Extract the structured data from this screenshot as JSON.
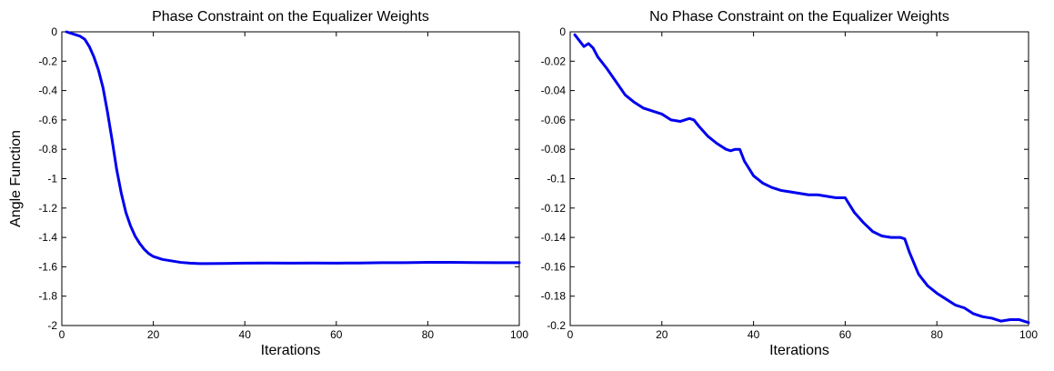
{
  "chart_data": [
    {
      "type": "line",
      "title": "Phase Constraint on the Equalizer Weights",
      "xlabel": "Iterations",
      "ylabel": "Angle Function",
      "xlim": [
        0,
        100
      ],
      "ylim": [
        -2,
        0
      ],
      "xticks": [
        0,
        20,
        40,
        60,
        80,
        100
      ],
      "xtick_labels": [
        "0",
        "20",
        "40",
        "60",
        "80",
        "100"
      ],
      "yticks": [
        0,
        -0.2,
        -0.4,
        -0.6,
        -0.8,
        -1,
        -1.2,
        -1.4,
        -1.6,
        -1.8,
        -2
      ],
      "ytick_labels": [
        "0",
        "-0.2",
        "-0.4",
        "-0.6",
        "-0.8",
        "-1",
        "-1.2",
        "-1.4",
        "-1.6",
        "-1.8",
        "-2"
      ],
      "grid": false,
      "line_color": "#0000ee",
      "series": [
        {
          "x": [
            1,
            2,
            3,
            4,
            5,
            6,
            7,
            8,
            9,
            10,
            11,
            12,
            13,
            14,
            15,
            16,
            17,
            18,
            19,
            20,
            22,
            24,
            26,
            28,
            30,
            32,
            35,
            38,
            40,
            45,
            50,
            55,
            60,
            65,
            70,
            75,
            80,
            85,
            90,
            95,
            100
          ],
          "values": [
            0,
            -0.01,
            -0.02,
            -0.03,
            -0.05,
            -0.1,
            -0.17,
            -0.26,
            -0.38,
            -0.55,
            -0.74,
            -0.94,
            -1.1,
            -1.23,
            -1.32,
            -1.39,
            -1.44,
            -1.48,
            -1.51,
            -1.53,
            -1.55,
            -1.56,
            -1.57,
            -1.575,
            -1.578,
            -1.578,
            -1.577,
            -1.576,
            -1.575,
            -1.574,
            -1.575,
            -1.574,
            -1.575,
            -1.574,
            -1.572,
            -1.572,
            -1.57,
            -1.57,
            -1.571,
            -1.572,
            -1.572
          ]
        }
      ]
    },
    {
      "type": "line",
      "title": "No Phase Constraint on the Equalizer  Weights",
      "xlabel": "Iterations",
      "ylabel": "",
      "xlim": [
        0,
        100
      ],
      "ylim": [
        -0.2,
        0
      ],
      "xticks": [
        0,
        20,
        40,
        60,
        80,
        100
      ],
      "xtick_labels": [
        "0",
        "20",
        "40",
        "60",
        "80",
        "100"
      ],
      "yticks": [
        0,
        -0.02,
        -0.04,
        -0.06,
        -0.08,
        -0.1,
        -0.12,
        -0.14,
        -0.16,
        -0.18,
        -0.2
      ],
      "ytick_labels": [
        "0",
        "-0.02",
        "-0.04",
        "-0.06",
        "-0.08",
        "-0.1",
        "-0.12",
        "-0.14",
        "-0.16",
        "-0.18",
        "-0.2"
      ],
      "grid": false,
      "line_color": "#0000ee",
      "series": [
        {
          "x": [
            1,
            2,
            3,
            4,
            5,
            6,
            8,
            10,
            12,
            14,
            16,
            18,
            20,
            22,
            24,
            26,
            27,
            28,
            30,
            32,
            34,
            35,
            36,
            37,
            38,
            40,
            42,
            44,
            46,
            48,
            50,
            52,
            54,
            56,
            58,
            60,
            62,
            64,
            66,
            68,
            70,
            72,
            73,
            74,
            76,
            78,
            80,
            82,
            84,
            86,
            88,
            90,
            92,
            94,
            96,
            98,
            100
          ],
          "values": [
            -0.002,
            -0.006,
            -0.01,
            -0.008,
            -0.011,
            -0.017,
            -0.025,
            -0.034,
            -0.043,
            -0.048,
            -0.052,
            -0.054,
            -0.056,
            -0.06,
            -0.061,
            -0.059,
            -0.06,
            -0.064,
            -0.071,
            -0.076,
            -0.08,
            -0.081,
            -0.08,
            -0.08,
            -0.088,
            -0.098,
            -0.103,
            -0.106,
            -0.108,
            -0.109,
            -0.11,
            -0.111,
            -0.111,
            -0.112,
            -0.113,
            -0.113,
            -0.123,
            -0.13,
            -0.136,
            -0.139,
            -0.14,
            -0.14,
            -0.141,
            -0.15,
            -0.165,
            -0.173,
            -0.178,
            -0.182,
            -0.186,
            -0.188,
            -0.192,
            -0.194,
            -0.195,
            -0.197,
            -0.196,
            -0.196,
            -0.198
          ]
        }
      ]
    }
  ]
}
